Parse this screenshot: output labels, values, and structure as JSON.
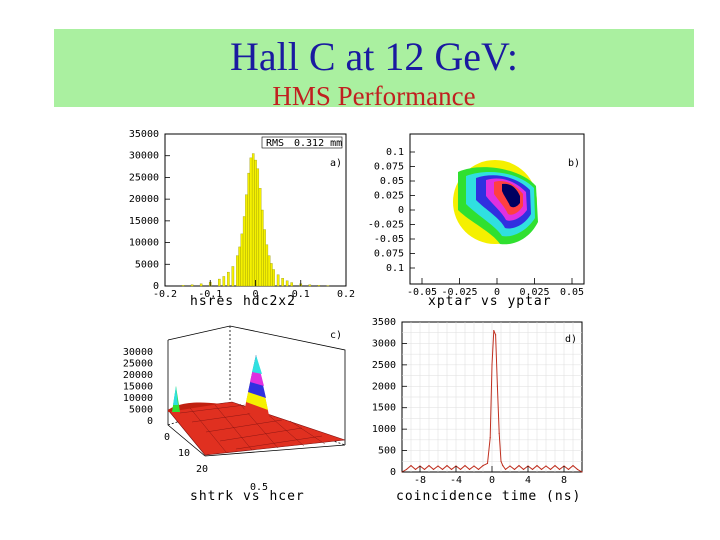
{
  "header": {
    "title": "Hall C at 12 GeV:",
    "subtitle": "HMS Performance"
  },
  "chart_data": [
    {
      "id": "a",
      "type": "bar",
      "panel_label": "a)",
      "title": "hsres hdc2x2",
      "stats_label": "RMS",
      "stats_value": "0.312 mm",
      "xlim": [
        -0.2,
        0.2
      ],
      "ylim": [
        0,
        35000
      ],
      "xticks": [
        "-0.2",
        "-0.1",
        "0",
        "0.1",
        "0.2"
      ],
      "yticks": [
        "0",
        "5000",
        "10000",
        "15000",
        "20000",
        "25000",
        "30000",
        "35000"
      ],
      "x": [
        -0.16,
        -0.14,
        -0.12,
        -0.1,
        -0.08,
        -0.07,
        -0.06,
        -0.05,
        -0.04,
        -0.035,
        -0.03,
        -0.025,
        -0.02,
        -0.015,
        -0.01,
        -0.005,
        0,
        0.005,
        0.01,
        0.015,
        0.02,
        0.025,
        0.03,
        0.035,
        0.04,
        0.05,
        0.06,
        0.07,
        0.08,
        0.1,
        0.12,
        0.14,
        0.16
      ],
      "values": [
        150,
        300,
        500,
        900,
        1600,
        2200,
        3200,
        4500,
        7000,
        9000,
        12000,
        16000,
        21000,
        26000,
        29500,
        30500,
        29000,
        27000,
        22500,
        17500,
        13000,
        9500,
        7000,
        5200,
        3800,
        2600,
        1800,
        1200,
        800,
        500,
        300,
        150,
        100
      ],
      "color": "#f5f000"
    },
    {
      "id": "b",
      "type": "heatmap",
      "panel_label": "b)",
      "title": "xptar vs yptar",
      "xlim": [
        -0.05,
        0.05
      ],
      "ylim": [
        -0.1,
        0.1
      ],
      "xticks": [
        "-0.05",
        "-0.025",
        "0",
        "0.025",
        "0.05"
      ],
      "yticks": [
        "0.1",
        "0.075",
        "0.05",
        "0.025",
        "0",
        "-0.025",
        "-0.05",
        "0.075",
        "0.1"
      ],
      "colors": [
        "#f5f000",
        "#30e030",
        "#30e0e0",
        "#3030e0",
        "#e030e0",
        "#ff4040",
        "#000060"
      ]
    },
    {
      "id": "c",
      "type": "area",
      "panel_label": "c)",
      "title": "shtrk vs hcer",
      "zticks": [
        "0",
        "5000",
        "10000",
        "15000",
        "20000",
        "25000",
        "30000"
      ],
      "y_axis_ticks": [
        "0",
        "10",
        "20"
      ],
      "x_axis_ticks": [
        "0.5"
      ],
      "surface_color": "#e03020"
    },
    {
      "id": "d",
      "type": "line",
      "panel_label": "d)",
      "title": "coincidence time (ns)",
      "xlim": [
        -10,
        10
      ],
      "ylim": [
        0,
        3500
      ],
      "xticks": [
        "-8",
        "-4",
        "0",
        "4",
        "8"
      ],
      "xtick_values": [
        -8,
        -4,
        0,
        4,
        8
      ],
      "yticks": [
        "0",
        "500",
        "1000",
        "1500",
        "2000",
        "2500",
        "3000",
        "3500"
      ],
      "x": [
        -10,
        -9.5,
        -9,
        -8.5,
        -8,
        -7.5,
        -7,
        -6.5,
        -6,
        -5.5,
        -5,
        -4.5,
        -4,
        -3.5,
        -3,
        -2.5,
        -2,
        -1.5,
        -1,
        -0.5,
        -0.2,
        0,
        0.2,
        0.4,
        0.6,
        0.8,
        1,
        1.2,
        1.5,
        2,
        2.5,
        3,
        3.5,
        4,
        4.5,
        5,
        5.5,
        6,
        6.5,
        7,
        7.5,
        8,
        8.5,
        9,
        9.5,
        10
      ],
      "y": [
        0,
        60,
        150,
        60,
        140,
        60,
        150,
        60,
        140,
        60,
        150,
        60,
        140,
        60,
        150,
        60,
        140,
        60,
        150,
        200,
        800,
        2500,
        3300,
        3200,
        2000,
        900,
        250,
        150,
        60,
        140,
        60,
        150,
        60,
        140,
        60,
        150,
        60,
        140,
        60,
        150,
        60,
        140,
        60,
        150,
        60,
        0
      ],
      "color": "#c03020"
    }
  ]
}
